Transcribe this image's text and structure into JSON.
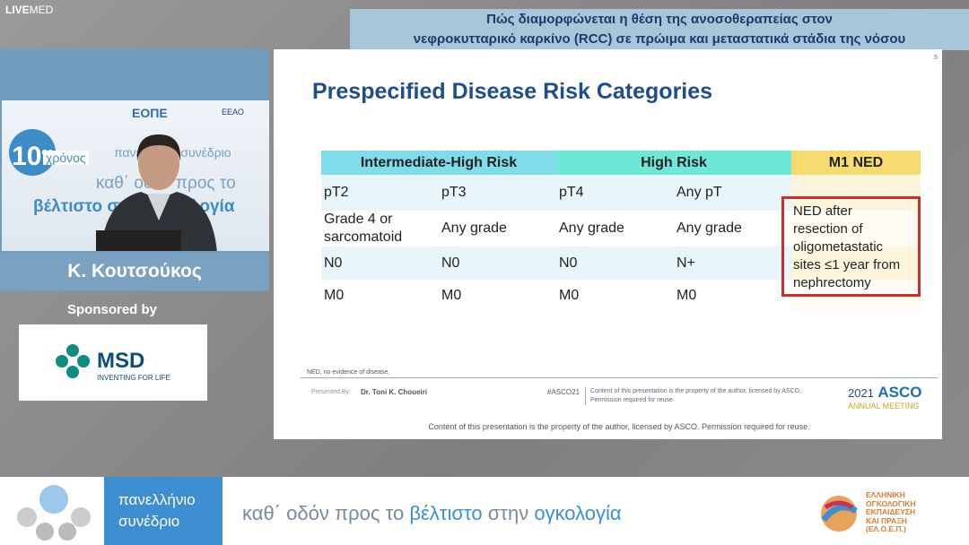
{
  "brand": {
    "live": "LIVE",
    "med": "MED"
  },
  "header": {
    "title_lines": [
      "Πώς διαμορφώνεται η θέση της ανοσοθεραπείας στον",
      "νεφροκυτταρικό καρκίνο (RCC) σε πρώιμα και μεταστατικά στάδια της νόσου"
    ]
  },
  "video": {
    "badge_number": "10",
    "badge_suffix": "ος",
    "badge_word": "χρόνος",
    "org": "ΕΟΠΕ",
    "org2": "ΕΕΑΟ",
    "bg_line1": "πανελλήνιο συνέδριο",
    "bg_line2": "καθ΄ οδόν προς το",
    "bg_line3": "βέλτιστο στην ογκολογία"
  },
  "speaker": {
    "name": "Κ. Κουτσούκος"
  },
  "sponsor": {
    "label": "Sponsored by",
    "logo": "MSD",
    "tagline": "INVENTING FOR LIFE"
  },
  "slide": {
    "page": "5",
    "title": "Prespecified Disease Risk Categories",
    "table": {
      "headers": [
        "Intermediate-High Risk",
        "High Risk",
        "M1 NED"
      ],
      "rows": [
        [
          "pT2",
          "pT3",
          "pT4",
          "Any pT"
        ],
        [
          "Grade 4 or sarcomatoid",
          "Any grade",
          "Any grade",
          "Any grade"
        ],
        [
          "N0",
          "N0",
          "N0",
          "N+"
        ],
        [
          "M0",
          "M0",
          "M0",
          "M0"
        ]
      ],
      "m1_ned_lines": [
        "NED after",
        "resection of",
        "oligometastatic",
        "sites ≤1 year from",
        "nephrectomy"
      ]
    },
    "footnote": "NED, no evidence of disease.",
    "footer": {
      "presented_label": "Presented By:",
      "presenter": "Dr. Toni K. Choueiri",
      "hashtag": "#ASCO21",
      "rights": "Content of this presentation is the property of the author, licensed by ASCO. Permission required for reuse.",
      "year": "2021",
      "asco": "ASCO",
      "meeting": "ANNUAL MEETING"
    },
    "notice": "Content of this presentation is the property of the author, licensed by ASCO. Permission required for reuse."
  },
  "banner": {
    "box_line1": "πανελλήνιο",
    "box_line2": "συνέδριο",
    "tag_a": "καθ΄ οδόν προς το",
    "tag_b": "βέλτιστο",
    "tag_c": "στην",
    "tag_d": "ογκολογία",
    "org_lines": [
      "ΕΛΛΗΝΙΚΗ",
      "ΟΓΚΟΛΟΓΙΚΗ",
      "ΕΚΠΑΙΔΕΥΣΗ",
      "ΚΑΙ ΠΡΑΞΗ",
      "(ΕΛ.Ο.Ε.Π.)"
    ]
  }
}
